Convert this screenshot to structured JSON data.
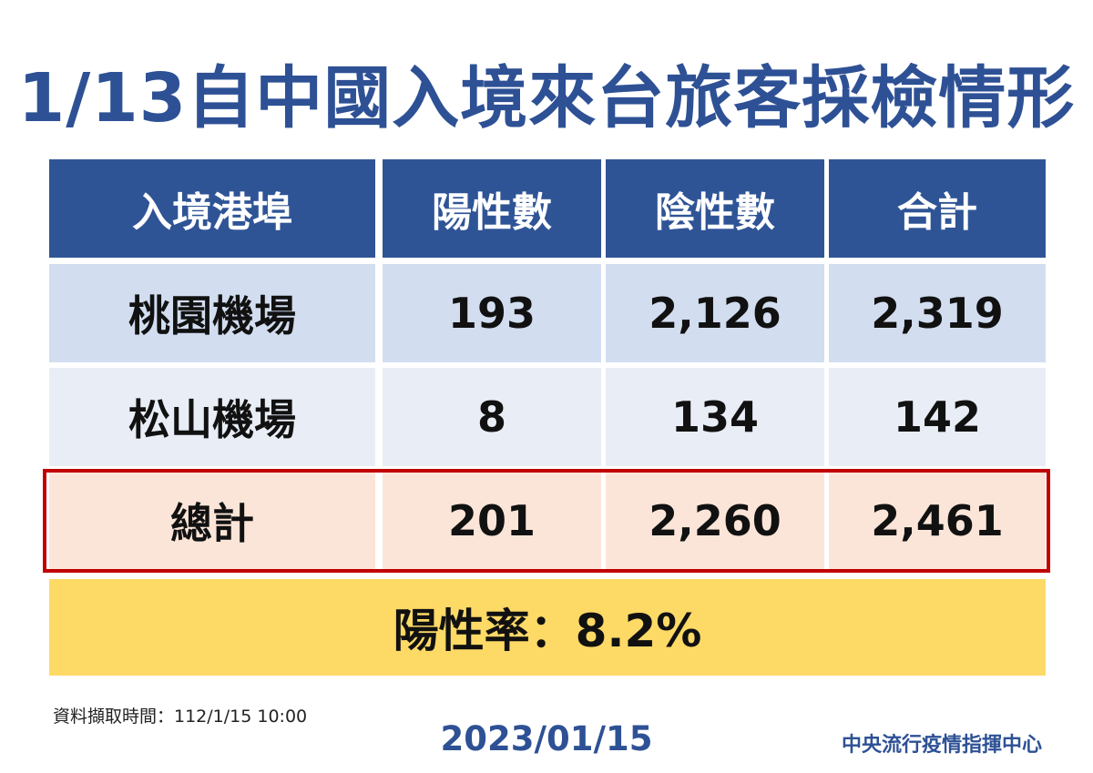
{
  "title": "1/13自中國入境來台旅客採檢情形",
  "table": {
    "headers": [
      "入境港埠",
      "陽性數",
      "陰性數",
      "合計"
    ],
    "rows": [
      [
        "桃園機場",
        "193",
        "2,126",
        "2,319"
      ],
      [
        "松山機場",
        "8",
        "134",
        "142"
      ]
    ],
    "total": [
      "總計",
      "201",
      "2,260",
      "2,461"
    ]
  },
  "positive_rate": "陽性率：8.2%",
  "source_note": "資料擷取時間：112/1/15 10:00",
  "date": "2023/01/15",
  "organization": "中央流行疫情指揮中心",
  "colors": {
    "title": "#2e5195",
    "header_bg": "#2f5496",
    "row1_bg": "#d2ddf0",
    "row2_bg": "#e8edf6",
    "total_bg": "#fbe5d8",
    "total_border": "#c00000",
    "rate_bg": "#fdd966"
  }
}
